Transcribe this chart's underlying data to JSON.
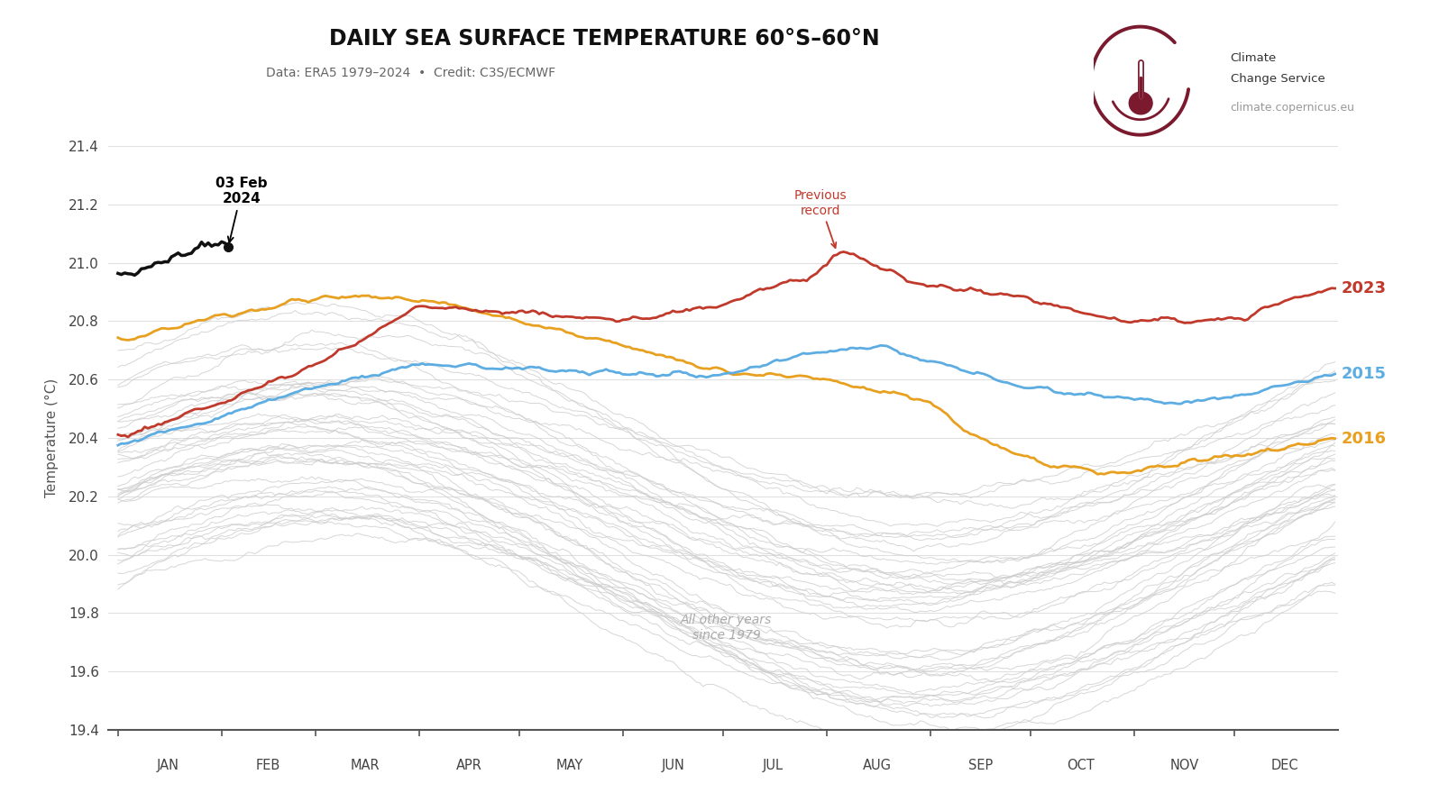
{
  "title": "DAILY SEA SURFACE TEMPERATURE 60°S–60°N",
  "subtitle": "Data: ERA5 1979–2024  •  Credit: C3S/ECMWF",
  "ylabel": "Temperature (°C)",
  "ylim": [
    19.4,
    21.4
  ],
  "yticks": [
    19.4,
    19.6,
    19.8,
    20.0,
    20.2,
    20.4,
    20.6,
    20.8,
    21.0,
    21.2,
    21.4
  ],
  "months": [
    "JAN",
    "FEB",
    "MAR",
    "APR",
    "MAY",
    "JUN",
    "JUL",
    "AUG",
    "SEP",
    "OCT",
    "NOV",
    "DEC"
  ],
  "month_starts": [
    0,
    31,
    59,
    90,
    120,
    151,
    181,
    212,
    243,
    273,
    304,
    334
  ],
  "month_mids": [
    15,
    45,
    74,
    105,
    135,
    166,
    196,
    227,
    258,
    288,
    319,
    349
  ],
  "color_2024": "#111111",
  "color_2023": "#c0392b",
  "color_2015": "#5dade2",
  "color_2016": "#e8a020",
  "color_other": "#cccccc",
  "logo_color": "#7b1a2e",
  "annotation_2024_label": "03 Feb\n2024",
  "annotation_record_label": "Previous\nrecord",
  "label_2023": "2023",
  "label_2015": "2015",
  "label_2016": "2016",
  "label_other": "All other years\nsince 1979",
  "website": "climate.copernicus.eu",
  "org_line1": "Climate",
  "org_line2": "Change Service"
}
